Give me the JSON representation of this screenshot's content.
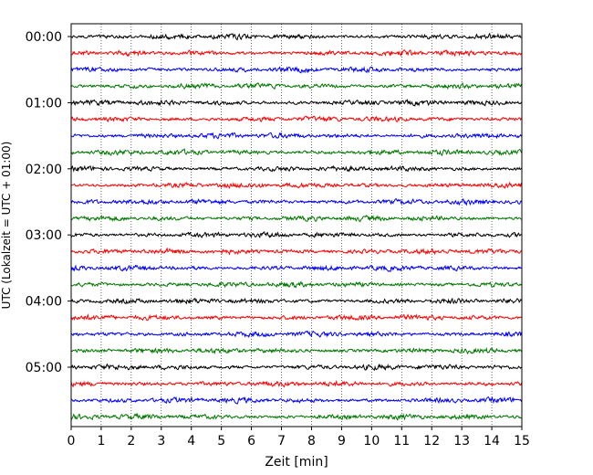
{
  "chart_data": {
    "type": "line",
    "title": "",
    "xlabel": "Zeit  [min]",
    "ylabel": "UTC (Lokalzeit = UTC + 01:00)",
    "xlim": [
      0,
      15
    ],
    "x_ticks": [
      "0",
      "1",
      "2",
      "3",
      "4",
      "5",
      "6",
      "7",
      "8",
      "9",
      "10",
      "11",
      "12",
      "13",
      "14",
      "15"
    ],
    "y_ticks": [
      "00:00",
      "01:00",
      "02:00",
      "03:00",
      "04:00",
      "05:00"
    ],
    "y_tick_rows": [
      0,
      4,
      8,
      12,
      16,
      20
    ],
    "grid": "vertical dotted",
    "trace_interval_min": 15,
    "trace_count": 24,
    "trace_color_cycle": [
      "#000000",
      "#ff0000",
      "#0000ff",
      "#007800"
    ],
    "series": [
      {
        "start": "00:00"
      },
      {
        "start": "00:15"
      },
      {
        "start": "00:30"
      },
      {
        "start": "00:45"
      },
      {
        "start": "01:00"
      },
      {
        "start": "01:15"
      },
      {
        "start": "01:30"
      },
      {
        "start": "01:45"
      },
      {
        "start": "02:00"
      },
      {
        "start": "02:15"
      },
      {
        "start": "02:30"
      },
      {
        "start": "02:45"
      },
      {
        "start": "03:00"
      },
      {
        "start": "03:15"
      },
      {
        "start": "03:30"
      },
      {
        "start": "03:45"
      },
      {
        "start": "04:00"
      },
      {
        "start": "04:15"
      },
      {
        "start": "04:30"
      },
      {
        "start": "04:45"
      },
      {
        "start": "05:00"
      },
      {
        "start": "05:15"
      },
      {
        "start": "05:30"
      },
      {
        "start": "05:45"
      }
    ]
  }
}
